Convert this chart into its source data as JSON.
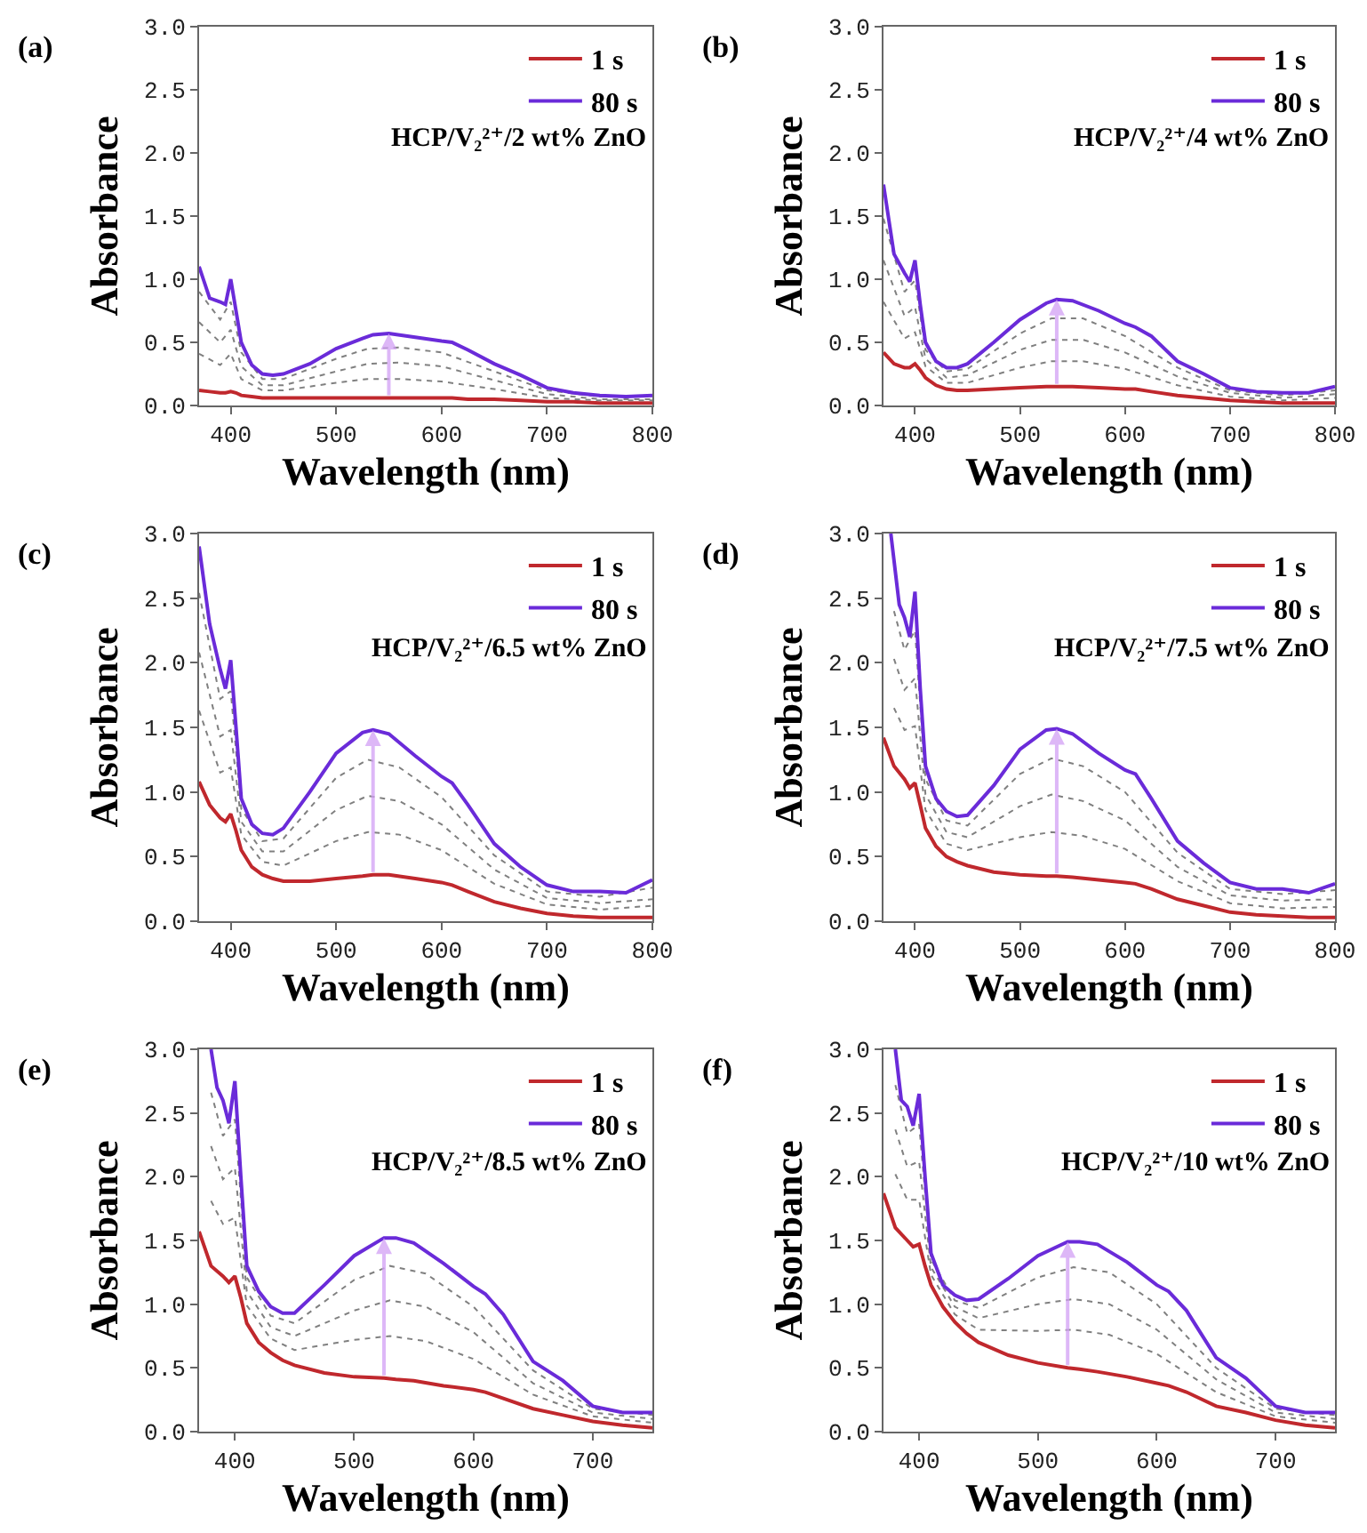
{
  "chart_data": [
    {
      "type": "line",
      "xlabel": "Wavelength (nm)",
      "ylabel": "Absorbance",
      "annotations": [
        "(a)",
        "HCP/V₂²⁺/2 wt% ZnO"
      ],
      "xlim": [
        370,
        800
      ],
      "xticks": [
        400,
        500,
        600,
        700,
        800
      ],
      "ylim": [
        0,
        3
      ],
      "yticks": [
        {
          "value": 0,
          "label": "0.0"
        },
        0.5,
        {
          "value": 1,
          "label": "1.0"
        },
        1.5,
        {
          "value": 2,
          "label": "2.0"
        },
        2.5,
        {
          "value": 3,
          "label": "3.0"
        }
      ],
      "legend": "top right",
      "grid": false,
      "series": [
        {
          "name": "1 s",
          "color": "#c0282d",
          "line_style": "solid",
          "x": [
            370,
            380,
            390,
            395,
            400,
            405,
            410,
            420,
            430,
            440,
            450,
            475,
            500,
            525,
            535,
            550,
            575,
            600,
            610,
            625,
            650,
            675,
            700,
            725,
            750,
            775,
            800
          ],
          "values": [
            0.12,
            0.11,
            0.1,
            0.1,
            0.11,
            0.1,
            0.08,
            0.07,
            0.06,
            0.06,
            0.06,
            0.06,
            0.06,
            0.06,
            0.06,
            0.06,
            0.06,
            0.06,
            0.06,
            0.05,
            0.05,
            0.04,
            0.03,
            0.03,
            0.02,
            0.02,
            0.02
          ]
        },
        {
          "color": "#808080",
          "line_style": "dotted",
          "x": [
            370,
            390,
            400,
            410,
            430,
            450,
            500,
            530,
            560,
            600,
            650,
            700,
            750,
            800
          ],
          "values": [
            0.41,
            0.32,
            0.41,
            0.21,
            0.12,
            0.12,
            0.18,
            0.21,
            0.21,
            0.19,
            0.13,
            0.06,
            0.04,
            0.04
          ]
        },
        {
          "color": "#808080",
          "line_style": "dotted",
          "x": [
            370,
            390,
            400,
            410,
            430,
            450,
            500,
            530,
            560,
            600,
            650,
            700,
            750,
            800
          ],
          "values": [
            0.66,
            0.5,
            0.6,
            0.31,
            0.16,
            0.16,
            0.27,
            0.33,
            0.34,
            0.31,
            0.2,
            0.09,
            0.05,
            0.05
          ]
        },
        {
          "color": "#808080",
          "line_style": "dotted",
          "x": [
            370,
            390,
            400,
            410,
            430,
            450,
            500,
            530,
            560,
            600,
            650,
            700,
            750,
            800
          ],
          "values": [
            0.9,
            0.68,
            0.82,
            0.42,
            0.21,
            0.21,
            0.37,
            0.45,
            0.46,
            0.42,
            0.27,
            0.12,
            0.07,
            0.07
          ]
        },
        {
          "name": "80 s",
          "color": "#6a2bd9",
          "line_style": "solid",
          "x": [
            370,
            380,
            390,
            395,
            400,
            405,
            410,
            420,
            430,
            440,
            450,
            475,
            500,
            525,
            535,
            550,
            575,
            600,
            610,
            625,
            650,
            675,
            700,
            725,
            750,
            775,
            800
          ],
          "values": [
            1.1,
            0.85,
            0.82,
            0.8,
            1.0,
            0.75,
            0.5,
            0.32,
            0.25,
            0.24,
            0.25,
            0.33,
            0.45,
            0.53,
            0.56,
            0.57,
            0.54,
            0.51,
            0.5,
            0.44,
            0.33,
            0.24,
            0.14,
            0.1,
            0.08,
            0.07,
            0.08
          ]
        }
      ]
    },
    {
      "type": "line",
      "xlabel": "Wavelength (nm)",
      "ylabel": "Absorbance",
      "annotations": [
        "(b)",
        "HCP/V₂²⁺/4 wt% ZnO"
      ],
      "xlim": [
        370,
        800
      ],
      "xticks": [
        400,
        500,
        600,
        700,
        800
      ],
      "ylim": [
        0,
        3
      ],
      "yticks": [
        {
          "value": 0,
          "label": "0.0"
        },
        0.5,
        {
          "value": 1,
          "label": "1.0"
        },
        1.5,
        {
          "value": 2,
          "label": "2.0"
        },
        2.5,
        {
          "value": 3,
          "label": "3.0"
        }
      ],
      "legend": "top right",
      "grid": false,
      "series": [
        {
          "name": "1 s",
          "color": "#c0282d",
          "line_style": "solid",
          "x": [
            370,
            380,
            390,
            395,
            400,
            405,
            410,
            420,
            430,
            440,
            450,
            475,
            500,
            525,
            535,
            550,
            575,
            600,
            610,
            625,
            650,
            675,
            700,
            725,
            750,
            775,
            800
          ],
          "values": [
            0.42,
            0.33,
            0.3,
            0.3,
            0.33,
            0.28,
            0.22,
            0.16,
            0.13,
            0.12,
            0.12,
            0.13,
            0.14,
            0.15,
            0.15,
            0.15,
            0.14,
            0.13,
            0.13,
            0.11,
            0.08,
            0.06,
            0.04,
            0.03,
            0.02,
            0.02,
            0.02
          ]
        },
        {
          "color": "#808080",
          "line_style": "dotted",
          "x": [
            370,
            390,
            400,
            410,
            430,
            450,
            500,
            530,
            560,
            600,
            650,
            700,
            750,
            800
          ],
          "values": [
            0.82,
            0.53,
            0.58,
            0.31,
            0.18,
            0.18,
            0.3,
            0.35,
            0.35,
            0.29,
            0.16,
            0.07,
            0.04,
            0.06
          ]
        },
        {
          "color": "#808080",
          "line_style": "dotted",
          "x": [
            370,
            390,
            400,
            410,
            430,
            450,
            500,
            530,
            560,
            600,
            650,
            700,
            750,
            800
          ],
          "values": [
            1.15,
            0.71,
            0.78,
            0.37,
            0.22,
            0.24,
            0.44,
            0.52,
            0.52,
            0.42,
            0.23,
            0.1,
            0.06,
            0.09
          ]
        },
        {
          "color": "#808080",
          "line_style": "dotted",
          "x": [
            370,
            390,
            400,
            410,
            430,
            450,
            500,
            530,
            560,
            600,
            650,
            700,
            750,
            800
          ],
          "values": [
            1.48,
            0.9,
            0.99,
            0.44,
            0.27,
            0.29,
            0.57,
            0.69,
            0.69,
            0.55,
            0.3,
            0.12,
            0.08,
            0.12
          ]
        },
        {
          "name": "80 s",
          "color": "#6a2bd9",
          "line_style": "solid",
          "x": [
            370,
            380,
            390,
            395,
            400,
            405,
            410,
            420,
            430,
            440,
            450,
            475,
            500,
            525,
            535,
            550,
            575,
            600,
            610,
            625,
            650,
            675,
            700,
            725,
            750,
            775,
            800
          ],
          "values": [
            1.75,
            1.2,
            1.05,
            0.98,
            1.15,
            0.8,
            0.5,
            0.35,
            0.3,
            0.3,
            0.33,
            0.5,
            0.68,
            0.81,
            0.84,
            0.83,
            0.75,
            0.65,
            0.62,
            0.55,
            0.35,
            0.25,
            0.14,
            0.11,
            0.1,
            0.1,
            0.15
          ]
        }
      ]
    },
    {
      "type": "line",
      "xlabel": "Wavelength (nm)",
      "ylabel": "Absorbance",
      "annotations": [
        "(c)",
        "HCP/V₂²⁺/6.5 wt% ZnO"
      ],
      "xlim": [
        370,
        800
      ],
      "xticks": [
        400,
        500,
        600,
        700,
        800
      ],
      "ylim": [
        0,
        3
      ],
      "yticks": [
        {
          "value": 0,
          "label": "0.0"
        },
        0.5,
        {
          "value": 1,
          "label": "1.0"
        },
        1.5,
        {
          "value": 2,
          "label": "2.0"
        },
        2.5,
        {
          "value": 3,
          "label": "3.0"
        }
      ],
      "legend": "top right",
      "grid": false,
      "series": [
        {
          "name": "1 s",
          "color": "#c0282d",
          "line_style": "solid",
          "x": [
            370,
            380,
            390,
            395,
            400,
            405,
            410,
            420,
            430,
            440,
            450,
            475,
            500,
            525,
            535,
            550,
            575,
            600,
            610,
            625,
            650,
            675,
            700,
            725,
            750,
            775,
            800
          ],
          "values": [
            1.08,
            0.9,
            0.8,
            0.77,
            0.83,
            0.7,
            0.55,
            0.42,
            0.36,
            0.33,
            0.31,
            0.31,
            0.33,
            0.35,
            0.36,
            0.36,
            0.33,
            0.3,
            0.28,
            0.23,
            0.15,
            0.1,
            0.06,
            0.04,
            0.03,
            0.03,
            0.03
          ]
        },
        {
          "color": "#808080",
          "line_style": "dotted",
          "x": [
            370,
            390,
            400,
            410,
            430,
            450,
            500,
            530,
            560,
            600,
            650,
            700,
            750,
            800
          ],
          "values": [
            1.63,
            1.15,
            1.19,
            0.67,
            0.46,
            0.43,
            0.62,
            0.69,
            0.67,
            0.55,
            0.29,
            0.13,
            0.09,
            0.12
          ]
        },
        {
          "color": "#808080",
          "line_style": "dotted",
          "x": [
            370,
            390,
            400,
            410,
            430,
            450,
            500,
            530,
            560,
            600,
            650,
            700,
            750,
            800
          ],
          "values": [
            2.08,
            1.43,
            1.48,
            0.77,
            0.54,
            0.54,
            0.86,
            0.97,
            0.93,
            0.75,
            0.4,
            0.18,
            0.14,
            0.17
          ]
        },
        {
          "color": "#808080",
          "line_style": "dotted",
          "x": [
            370,
            390,
            400,
            410,
            430,
            450,
            500,
            530,
            560,
            600,
            650,
            700,
            750,
            800
          ],
          "values": [
            2.54,
            1.72,
            1.78,
            0.87,
            0.62,
            0.64,
            1.11,
            1.25,
            1.19,
            0.96,
            0.51,
            0.23,
            0.19,
            0.26
          ]
        },
        {
          "name": "80 s",
          "color": "#6a2bd9",
          "line_style": "solid",
          "x": [
            370,
            380,
            390,
            395,
            400,
            405,
            410,
            420,
            430,
            440,
            450,
            475,
            500,
            525,
            535,
            550,
            575,
            600,
            610,
            625,
            650,
            675,
            700,
            725,
            750,
            775,
            800
          ],
          "values": [
            2.9,
            2.3,
            1.95,
            1.8,
            2.02,
            1.5,
            0.95,
            0.75,
            0.68,
            0.67,
            0.72,
            1.0,
            1.3,
            1.46,
            1.48,
            1.45,
            1.28,
            1.12,
            1.07,
            0.9,
            0.6,
            0.42,
            0.28,
            0.23,
            0.23,
            0.22,
            0.32
          ]
        }
      ]
    },
    {
      "type": "line",
      "xlabel": "Wavelength (nm)",
      "ylabel": "Absorbance",
      "annotations": [
        "(d)",
        "HCP/V₂²⁺/7.5 wt% ZnO"
      ],
      "xlim": [
        370,
        800
      ],
      "xticks": [
        400,
        500,
        600,
        700,
        800
      ],
      "ylim": [
        0,
        3
      ],
      "yticks": [
        {
          "value": 0,
          "label": "0.0"
        },
        0.5,
        {
          "value": 1,
          "label": "1.0"
        },
        1.5,
        {
          "value": 2,
          "label": "2.0"
        },
        2.5,
        {
          "value": 3,
          "label": "3.0"
        }
      ],
      "legend": "top right",
      "grid": false,
      "series": [
        {
          "name": "1 s",
          "color": "#c0282d",
          "line_style": "solid",
          "x": [
            370,
            380,
            390,
            395,
            400,
            405,
            410,
            420,
            430,
            440,
            450,
            475,
            500,
            525,
            535,
            550,
            575,
            600,
            610,
            625,
            650,
            675,
            700,
            725,
            750,
            775,
            800
          ],
          "values": [
            1.42,
            1.2,
            1.1,
            1.03,
            1.07,
            0.9,
            0.72,
            0.58,
            0.5,
            0.46,
            0.43,
            0.38,
            0.36,
            0.35,
            0.35,
            0.34,
            0.32,
            0.3,
            0.29,
            0.25,
            0.17,
            0.12,
            0.07,
            0.05,
            0.04,
            0.03,
            0.03
          ]
        },
        {
          "color": "#808080",
          "line_style": "dotted",
          "x": [
            380,
            390,
            400,
            410,
            430,
            450,
            500,
            530,
            560,
            600,
            650,
            700,
            750,
            800
          ],
          "values": [
            1.65,
            1.48,
            1.51,
            0.86,
            0.6,
            0.55,
            0.65,
            0.69,
            0.66,
            0.56,
            0.31,
            0.14,
            0.1,
            0.11
          ]
        },
        {
          "color": "#808080",
          "line_style": "dotted",
          "x": [
            380,
            390,
            400,
            410,
            430,
            450,
            500,
            530,
            560,
            600,
            650,
            700,
            750,
            800
          ],
          "values": [
            2.03,
            1.79,
            1.88,
            0.98,
            0.69,
            0.65,
            0.89,
            0.98,
            0.93,
            0.78,
            0.42,
            0.2,
            0.16,
            0.17
          ]
        },
        {
          "color": "#808080",
          "line_style": "dotted",
          "x": [
            380,
            390,
            400,
            410,
            430,
            450,
            500,
            530,
            560,
            600,
            650,
            700,
            750,
            800
          ],
          "values": [
            2.4,
            2.1,
            2.25,
            1.1,
            0.78,
            0.74,
            1.14,
            1.26,
            1.2,
            1.0,
            0.53,
            0.25,
            0.21,
            0.24
          ]
        },
        {
          "name": "80 s",
          "color": "#6a2bd9",
          "line_style": "solid",
          "x": [
            377,
            385,
            390,
            395,
            400,
            405,
            410,
            420,
            430,
            440,
            450,
            475,
            500,
            525,
            535,
            550,
            575,
            600,
            610,
            625,
            650,
            675,
            700,
            725,
            750,
            775,
            800
          ],
          "values": [
            3.0,
            2.45,
            2.35,
            2.2,
            2.55,
            1.8,
            1.2,
            0.95,
            0.85,
            0.81,
            0.82,
            1.05,
            1.33,
            1.48,
            1.49,
            1.45,
            1.3,
            1.17,
            1.14,
            0.95,
            0.62,
            0.45,
            0.3,
            0.25,
            0.25,
            0.22,
            0.29
          ]
        }
      ]
    },
    {
      "type": "line",
      "xlabel": "Wavelength (nm)",
      "ylabel": "Absorbance",
      "annotations": [
        "(e)",
        "HCP/V₂²⁺/8.5 wt% ZnO"
      ],
      "xlim": [
        370,
        750
      ],
      "xticks": [
        400,
        500,
        600,
        700
      ],
      "ylim": [
        0,
        3
      ],
      "yticks": [
        {
          "value": 0,
          "label": "0.0"
        },
        0.5,
        {
          "value": 1,
          "label": "1.0"
        },
        1.5,
        {
          "value": 2,
          "label": "2.0"
        },
        2.5,
        {
          "value": 3,
          "label": "3.0"
        }
      ],
      "legend": "top right",
      "grid": false,
      "series": [
        {
          "name": "1 s",
          "color": "#c0282d",
          "line_style": "solid",
          "x": [
            370,
            380,
            390,
            395,
            400,
            405,
            410,
            420,
            430,
            440,
            450,
            475,
            500,
            525,
            535,
            550,
            575,
            600,
            610,
            625,
            650,
            675,
            700,
            725,
            750
          ],
          "values": [
            1.57,
            1.3,
            1.22,
            1.17,
            1.22,
            1.05,
            0.85,
            0.7,
            0.62,
            0.56,
            0.52,
            0.46,
            0.43,
            0.42,
            0.41,
            0.4,
            0.36,
            0.33,
            0.31,
            0.26,
            0.18,
            0.13,
            0.08,
            0.05,
            0.03
          ]
        },
        {
          "color": "#808080",
          "line_style": "dotted",
          "x": [
            380,
            390,
            400,
            410,
            430,
            450,
            500,
            530,
            560,
            600,
            650,
            700,
            750
          ],
          "values": [
            1.81,
            1.63,
            1.68,
            0.99,
            0.73,
            0.64,
            0.72,
            0.75,
            0.71,
            0.57,
            0.29,
            0.12,
            0.07
          ]
        },
        {
          "color": "#808080",
          "line_style": "dotted",
          "x": [
            380,
            390,
            400,
            410,
            430,
            450,
            500,
            530,
            560,
            600,
            650,
            700,
            750
          ],
          "values": [
            2.24,
            1.98,
            2.07,
            1.1,
            0.82,
            0.75,
            0.95,
            1.03,
            0.98,
            0.78,
            0.38,
            0.15,
            0.1
          ]
        },
        {
          "color": "#808080",
          "line_style": "dotted",
          "x": [
            380,
            390,
            400,
            410,
            430,
            450,
            500,
            530,
            560,
            600,
            650,
            700,
            750
          ],
          "values": [
            2.66,
            2.32,
            2.45,
            1.21,
            0.91,
            0.85,
            1.19,
            1.3,
            1.24,
            0.98,
            0.48,
            0.18,
            0.13
          ]
        },
        {
          "name": "80 s",
          "color": "#6a2bd9",
          "line_style": "solid",
          "x": [
            380,
            385,
            390,
            395,
            400,
            405,
            410,
            420,
            430,
            440,
            450,
            475,
            500,
            525,
            535,
            550,
            575,
            600,
            610,
            625,
            650,
            675,
            700,
            725,
            750
          ],
          "values": [
            3.0,
            2.7,
            2.6,
            2.42,
            2.75,
            2.0,
            1.3,
            1.1,
            0.98,
            0.93,
            0.93,
            1.15,
            1.38,
            1.52,
            1.52,
            1.48,
            1.32,
            1.14,
            1.08,
            0.92,
            0.55,
            0.4,
            0.2,
            0.15,
            0.15
          ]
        }
      ]
    },
    {
      "type": "line",
      "xlabel": "Wavelength (nm)",
      "ylabel": "Absorbance",
      "annotations": [
        "(f)",
        "HCP/V₂²⁺/10 wt% ZnO"
      ],
      "xlim": [
        370,
        750
      ],
      "xticks": [
        400,
        500,
        600,
        700
      ],
      "ylim": [
        0,
        3
      ],
      "yticks": [
        {
          "value": 0,
          "label": "0.0"
        },
        0.5,
        {
          "value": 1,
          "label": "1.0"
        },
        1.5,
        {
          "value": 2,
          "label": "2.0"
        },
        2.5,
        {
          "value": 3,
          "label": "3.0"
        }
      ],
      "legend": "top right",
      "grid": false,
      "series": [
        {
          "name": "1 s",
          "color": "#c0282d",
          "line_style": "solid",
          "x": [
            370,
            380,
            390,
            395,
            400,
            405,
            410,
            420,
            430,
            440,
            450,
            475,
            500,
            525,
            535,
            550,
            575,
            600,
            610,
            625,
            650,
            675,
            700,
            725,
            750
          ],
          "values": [
            1.87,
            1.6,
            1.5,
            1.45,
            1.47,
            1.3,
            1.15,
            0.98,
            0.86,
            0.77,
            0.7,
            0.6,
            0.54,
            0.5,
            0.49,
            0.47,
            0.43,
            0.38,
            0.36,
            0.31,
            0.2,
            0.15,
            0.09,
            0.05,
            0.03
          ]
        },
        {
          "color": "#808080",
          "line_style": "dotted",
          "x": [
            380,
            390,
            400,
            410,
            430,
            450,
            500,
            530,
            560,
            600,
            650,
            700,
            750
          ],
          "values": [
            2.02,
            1.82,
            1.82,
            1.23,
            0.92,
            0.8,
            0.79,
            0.8,
            0.76,
            0.61,
            0.31,
            0.12,
            0.07
          ]
        },
        {
          "color": "#808080",
          "line_style": "dotted",
          "x": [
            380,
            390,
            400,
            410,
            430,
            450,
            500,
            530,
            560,
            600,
            650,
            700,
            750
          ],
          "values": [
            2.37,
            2.08,
            2.12,
            1.29,
            0.98,
            0.89,
            1.0,
            1.04,
            1.0,
            0.8,
            0.41,
            0.15,
            0.1
          ]
        },
        {
          "color": "#808080",
          "line_style": "dotted",
          "x": [
            380,
            390,
            400,
            410,
            430,
            450,
            500,
            530,
            560,
            600,
            650,
            700,
            750
          ],
          "values": [
            2.72,
            2.34,
            2.41,
            1.35,
            1.03,
            0.97,
            1.21,
            1.29,
            1.25,
            1.0,
            0.5,
            0.18,
            0.13
          ]
        },
        {
          "name": "80 s",
          "color": "#6a2bd9",
          "line_style": "solid",
          "x": [
            380,
            385,
            390,
            395,
            400,
            405,
            410,
            420,
            430,
            440,
            450,
            475,
            500,
            525,
            535,
            550,
            575,
            600,
            610,
            625,
            650,
            675,
            700,
            725,
            750
          ],
          "values": [
            3.0,
            2.6,
            2.55,
            2.4,
            2.65,
            2.0,
            1.4,
            1.15,
            1.07,
            1.03,
            1.04,
            1.2,
            1.38,
            1.49,
            1.49,
            1.47,
            1.33,
            1.15,
            1.1,
            0.95,
            0.58,
            0.42,
            0.2,
            0.15,
            0.15
          ]
        }
      ]
    }
  ]
}
